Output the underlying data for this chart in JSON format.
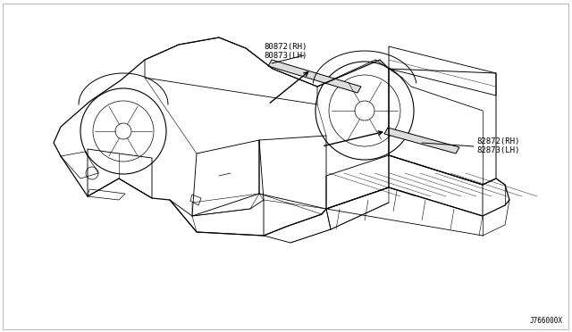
{
  "background_color": "#ffffff",
  "border_color": "#bbbbbb",
  "text_color": "#000000",
  "line_color": "#000000",
  "molding_fill": "#dddddd",
  "font_size": 6.5,
  "code_font_size": 5.5,
  "diagram_code": "J766000X",
  "upper_label_lines": [
    "82872(RH)",
    "82873(LH)"
  ],
  "lower_label_lines": [
    "80872(RH)",
    "80873(LH)"
  ],
  "figsize": [
    6.4,
    3.72
  ],
  "dpi": 100
}
